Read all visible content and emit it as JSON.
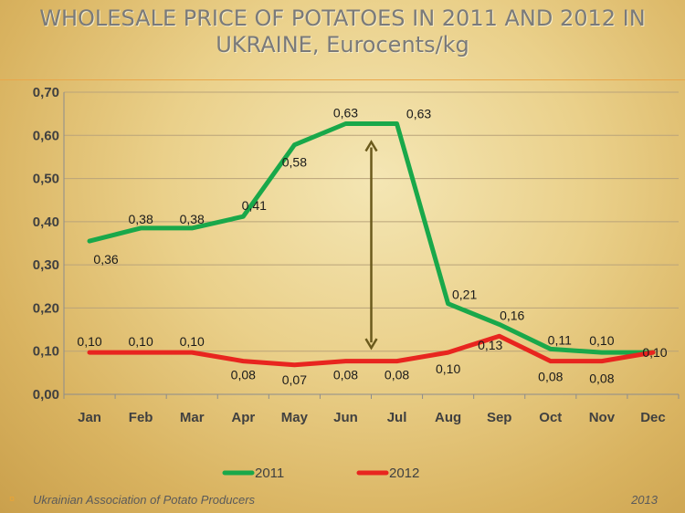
{
  "title": {
    "line1": "WHOLESALE PRICE OF POTATOES IN 2011 AND 2012 IN",
    "line2": "UKRAINE, Eurocents/kg"
  },
  "footer": {
    "bullet": "¤",
    "organization": "Ukrainian Association of Potato Producers",
    "year": "2013"
  },
  "chart_data": {
    "type": "line",
    "title": "WHOLESALE PRICE OF POTATOES IN 2011 AND 2012 IN UKRAINE, Eurocents/kg",
    "categories": [
      "Jan",
      "Feb",
      "Mar",
      "Apr",
      "May",
      "Jun",
      "Jul",
      "Aug",
      "Sep",
      "Oct",
      "Nov",
      "Dec"
    ],
    "ylim": [
      0,
      0.7
    ],
    "yticks": [
      "0,00",
      "0,10",
      "0,20",
      "0,30",
      "0,40",
      "0,50",
      "0,60",
      "0,70"
    ],
    "grid": true,
    "legend": "bottom",
    "series": [
      {
        "name": "2011",
        "color": "#19a84a",
        "values": [
          0.355,
          0.385,
          0.385,
          0.412,
          0.578,
          0.627,
          0.627,
          0.21,
          0.162,
          0.105,
          0.097,
          0.097
        ],
        "labels": [
          "0,36",
          "0,38",
          "0,38",
          "0,41",
          "0,58",
          "0,63",
          "0,63",
          "0,21",
          "0,16",
          "0,11",
          "0,10",
          ""
        ]
      },
      {
        "name": "2012",
        "color": "#e8251f",
        "values": [
          0.097,
          0.097,
          0.097,
          0.077,
          0.068,
          0.077,
          0.077,
          0.097,
          0.135,
          0.077,
          0.077,
          0.097
        ],
        "labels": [
          "0,10",
          "0,10",
          "0,10",
          "0,08",
          "0,07",
          "0,08",
          "0,08",
          "0,10",
          "0,13",
          "0,08",
          "0,08",
          "0,10"
        ]
      }
    ],
    "annotation": {
      "type": "double-arrow",
      "x_between": [
        "Jun",
        "Jul"
      ],
      "from": 0.627,
      "to": 0.097,
      "color": "#6b5a1c"
    }
  }
}
